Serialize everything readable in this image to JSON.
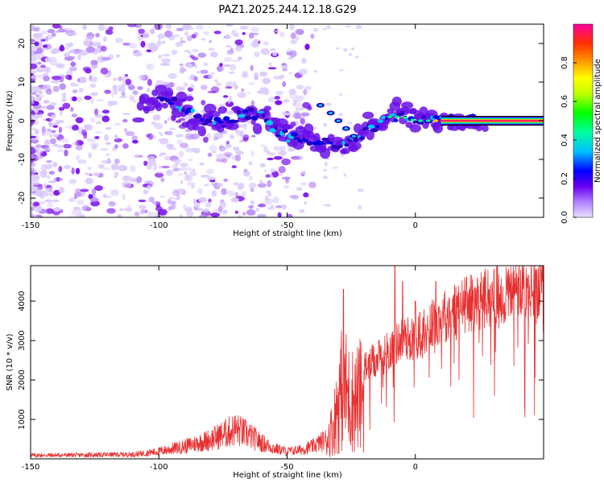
{
  "title": "PAZ1.2025.244.12.18.G29",
  "chart_data": [
    {
      "type": "heatmap",
      "name": "spectrogram",
      "xlabel": "Height of straight line (km)",
      "ylabel": "Frequency (Hz)",
      "xlim": [
        -150,
        50
      ],
      "ylim": [
        -25,
        25
      ],
      "xticks": [
        -150,
        -100,
        -50,
        0
      ],
      "yticks": [
        20,
        10,
        0,
        -10,
        -20
      ],
      "colorbar": {
        "label": "Normalized spectral amplitude",
        "range": [
          0,
          1
        ],
        "ticks": [
          "0.0",
          "0.2",
          "0.4",
          "0.6",
          "0.8"
        ],
        "tick_values": [
          0.0,
          0.2,
          0.4,
          0.6,
          0.8
        ],
        "colors": [
          "#e8e0ff",
          "#b080ff",
          "#6a00f0",
          "#0000ff",
          "#00c0ff",
          "#00ffa0",
          "#00ff00",
          "#c0ff00",
          "#ffff00",
          "#ffa000",
          "#ff3000",
          "#ff00a0"
        ]
      },
      "ridge": {
        "points": [
          [
            -105,
            3
          ],
          [
            -100,
            7
          ],
          [
            -95,
            5
          ],
          [
            -90,
            3
          ],
          [
            -85,
            1
          ],
          [
            -80,
            0
          ],
          [
            -75,
            -1
          ],
          [
            -70,
            1
          ],
          [
            -65,
            2
          ],
          [
            -60,
            1
          ],
          [
            -55,
            -2
          ],
          [
            -50,
            -4
          ],
          [
            -45,
            -4
          ],
          [
            -40,
            -5
          ],
          [
            -35,
            -6
          ],
          [
            -30,
            -6
          ],
          [
            -25,
            -5
          ],
          [
            -20,
            -3
          ],
          [
            -15,
            -1
          ],
          [
            -10,
            1
          ],
          [
            -5,
            1
          ],
          [
            0,
            0
          ],
          [
            5,
            0
          ],
          [
            10,
            0
          ],
          [
            20,
            0
          ],
          [
            50,
            0
          ]
        ],
        "branch": [
          [
            -37,
            4
          ],
          [
            -33,
            2
          ],
          [
            -30,
            0
          ],
          [
            -27,
            -2
          ],
          [
            -24,
            -4
          ]
        ],
        "band": [
          [
            10,
            0
          ],
          [
            50,
            0
          ]
        ]
      }
    },
    {
      "type": "line",
      "name": "snr",
      "xlabel": "Height of straight line (km)",
      "ylabel": "SNR (10 * v/v)",
      "xlim": [
        -150,
        50
      ],
      "ylim": [
        0,
        4900
      ],
      "xticks": [
        -150,
        -100,
        -50,
        0
      ],
      "yticks": [
        1000,
        2000,
        3000,
        4000
      ],
      "color": "#e83030",
      "envelope": [
        [
          -150,
          120
        ],
        [
          -130,
          130
        ],
        [
          -110,
          150
        ],
        [
          -100,
          250
        ],
        [
          -90,
          420
        ],
        [
          -80,
          650
        ],
        [
          -70,
          1000
        ],
        [
          -65,
          800
        ],
        [
          -60,
          550
        ],
        [
          -55,
          350
        ],
        [
          -50,
          250
        ],
        [
          -45,
          300
        ],
        [
          -40,
          420
        ],
        [
          -35,
          650
        ],
        [
          -32,
          1200
        ],
        [
          -30,
          2200
        ],
        [
          -28,
          2800
        ],
        [
          -26,
          2300
        ],
        [
          -24,
          2200
        ],
        [
          -20,
          2500
        ],
        [
          -15,
          2700
        ],
        [
          -10,
          3000
        ],
        [
          -5,
          3300
        ],
        [
          0,
          3300
        ],
        [
          5,
          3600
        ],
        [
          10,
          3900
        ],
        [
          15,
          4100
        ],
        [
          20,
          4250
        ],
        [
          25,
          4350
        ],
        [
          30,
          4450
        ],
        [
          40,
          4600
        ],
        [
          50,
          4600
        ]
      ],
      "spikes": [
        [
          -28,
          4300
        ],
        [
          -8,
          4900
        ],
        [
          -5,
          4500
        ],
        [
          0,
          4000
        ],
        [
          8,
          4500
        ],
        [
          47,
          4800
        ]
      ]
    }
  ]
}
